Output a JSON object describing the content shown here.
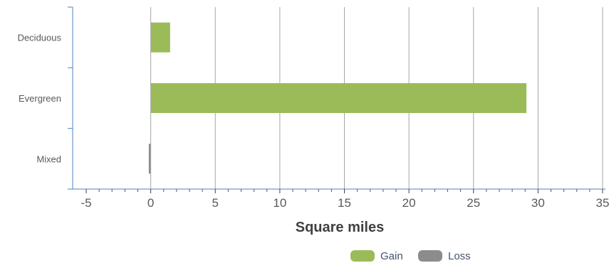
{
  "chart_data": {
    "type": "bar",
    "orientation": "horizontal",
    "categories": [
      "Deciduous",
      "Evergreen",
      "Mixed"
    ],
    "series": [
      {
        "name": "Gain",
        "values": [
          1.5,
          29.1,
          0
        ],
        "color": "#9bbb59"
      },
      {
        "name": "Loss",
        "values": [
          0,
          0,
          -0.15
        ],
        "color": "#8c8c8c"
      }
    ],
    "title": "",
    "xlabel": "Square miles",
    "ylabel": "",
    "xlim": [
      -5,
      35
    ],
    "x_ticks": [
      -5,
      0,
      5,
      10,
      15,
      20,
      25,
      30,
      35
    ],
    "x_tick_labels": [
      "-5",
      "0",
      "5",
      "10",
      "15",
      "20",
      "25",
      "30",
      "35"
    ],
    "grid": "vertical",
    "legend": "bottom-right",
    "colors": {
      "gridline": "#a6a6a6",
      "axis": "#4f81bd"
    }
  }
}
